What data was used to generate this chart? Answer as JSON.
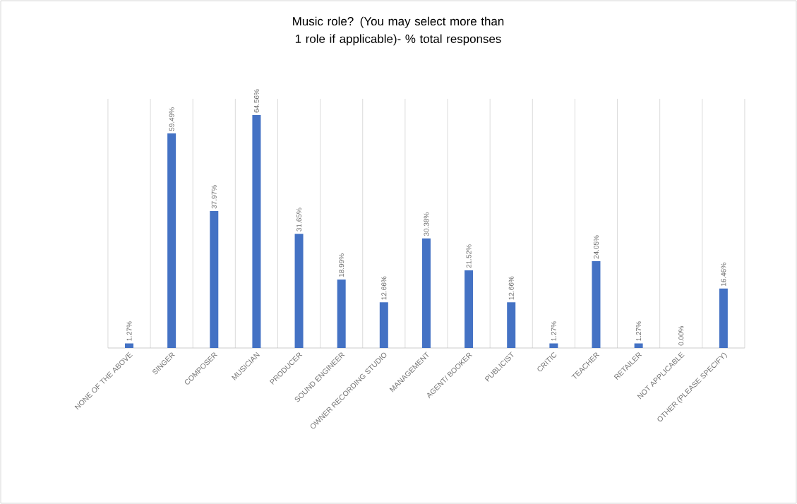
{
  "chart_data": {
    "type": "bar",
    "title": "Music role? (You may select more than 1 role if applicable)- % total responses",
    "categories": [
      "NONE OF THE ABOVE",
      "SINGER",
      "COMPOSER",
      "MUSICIAN",
      "PRODUCER",
      "SOUND ENGINEER",
      "OWNER RECORDING STUDIO",
      "MANAGEMENT",
      "AGENT/ BOOKER",
      "PUBLICIST",
      "CRITIC",
      "TEACHER",
      "RETAILER",
      "NOT APPLICABLE",
      "OTHER (PLEASE SPECIFY)"
    ],
    "values": [
      1.27,
      59.49,
      37.97,
      64.56,
      31.65,
      18.99,
      12.66,
      30.38,
      21.52,
      12.66,
      1.27,
      24.05,
      1.27,
      0.0,
      16.46
    ],
    "value_labels": [
      "1.27%",
      "59.49%",
      "37.97%",
      "64.56%",
      "31.65%",
      "18.99%",
      "12.66%",
      "30.38%",
      "21.52%",
      "12.66%",
      "1.27%",
      "24.05%",
      "1.27%",
      "0.00%",
      "16.46%"
    ],
    "color": "#4472c4",
    "grid": "x"
  }
}
